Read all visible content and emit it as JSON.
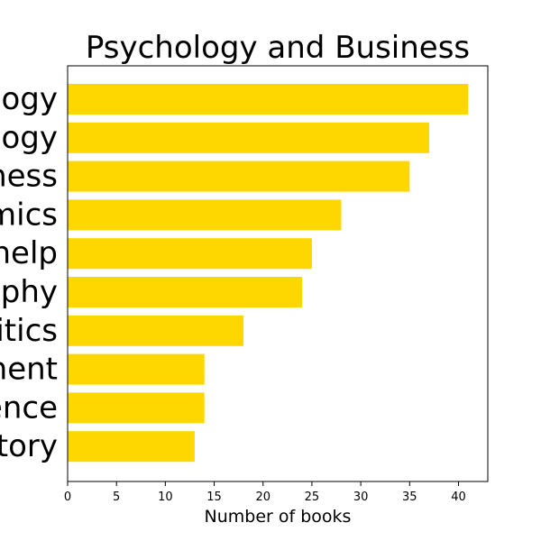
{
  "chart_data": {
    "type": "bar",
    "orientation": "horizontal",
    "title": "Psychology and Business",
    "xlabel": "Number of books",
    "ylabel": "",
    "categories_visible": [
      "ogy",
      "ogy",
      "ness",
      "mics",
      "help",
      "phy",
      "itics",
      "ment",
      "ence",
      "tory"
    ],
    "values": [
      41,
      37,
      35,
      28,
      25,
      24,
      18,
      14,
      14,
      13
    ],
    "xlim": [
      0,
      43
    ],
    "xticks": [
      0,
      5,
      10,
      15,
      20,
      25,
      30,
      35,
      40
    ],
    "grid": false,
    "bar_color": "#ffd700"
  }
}
